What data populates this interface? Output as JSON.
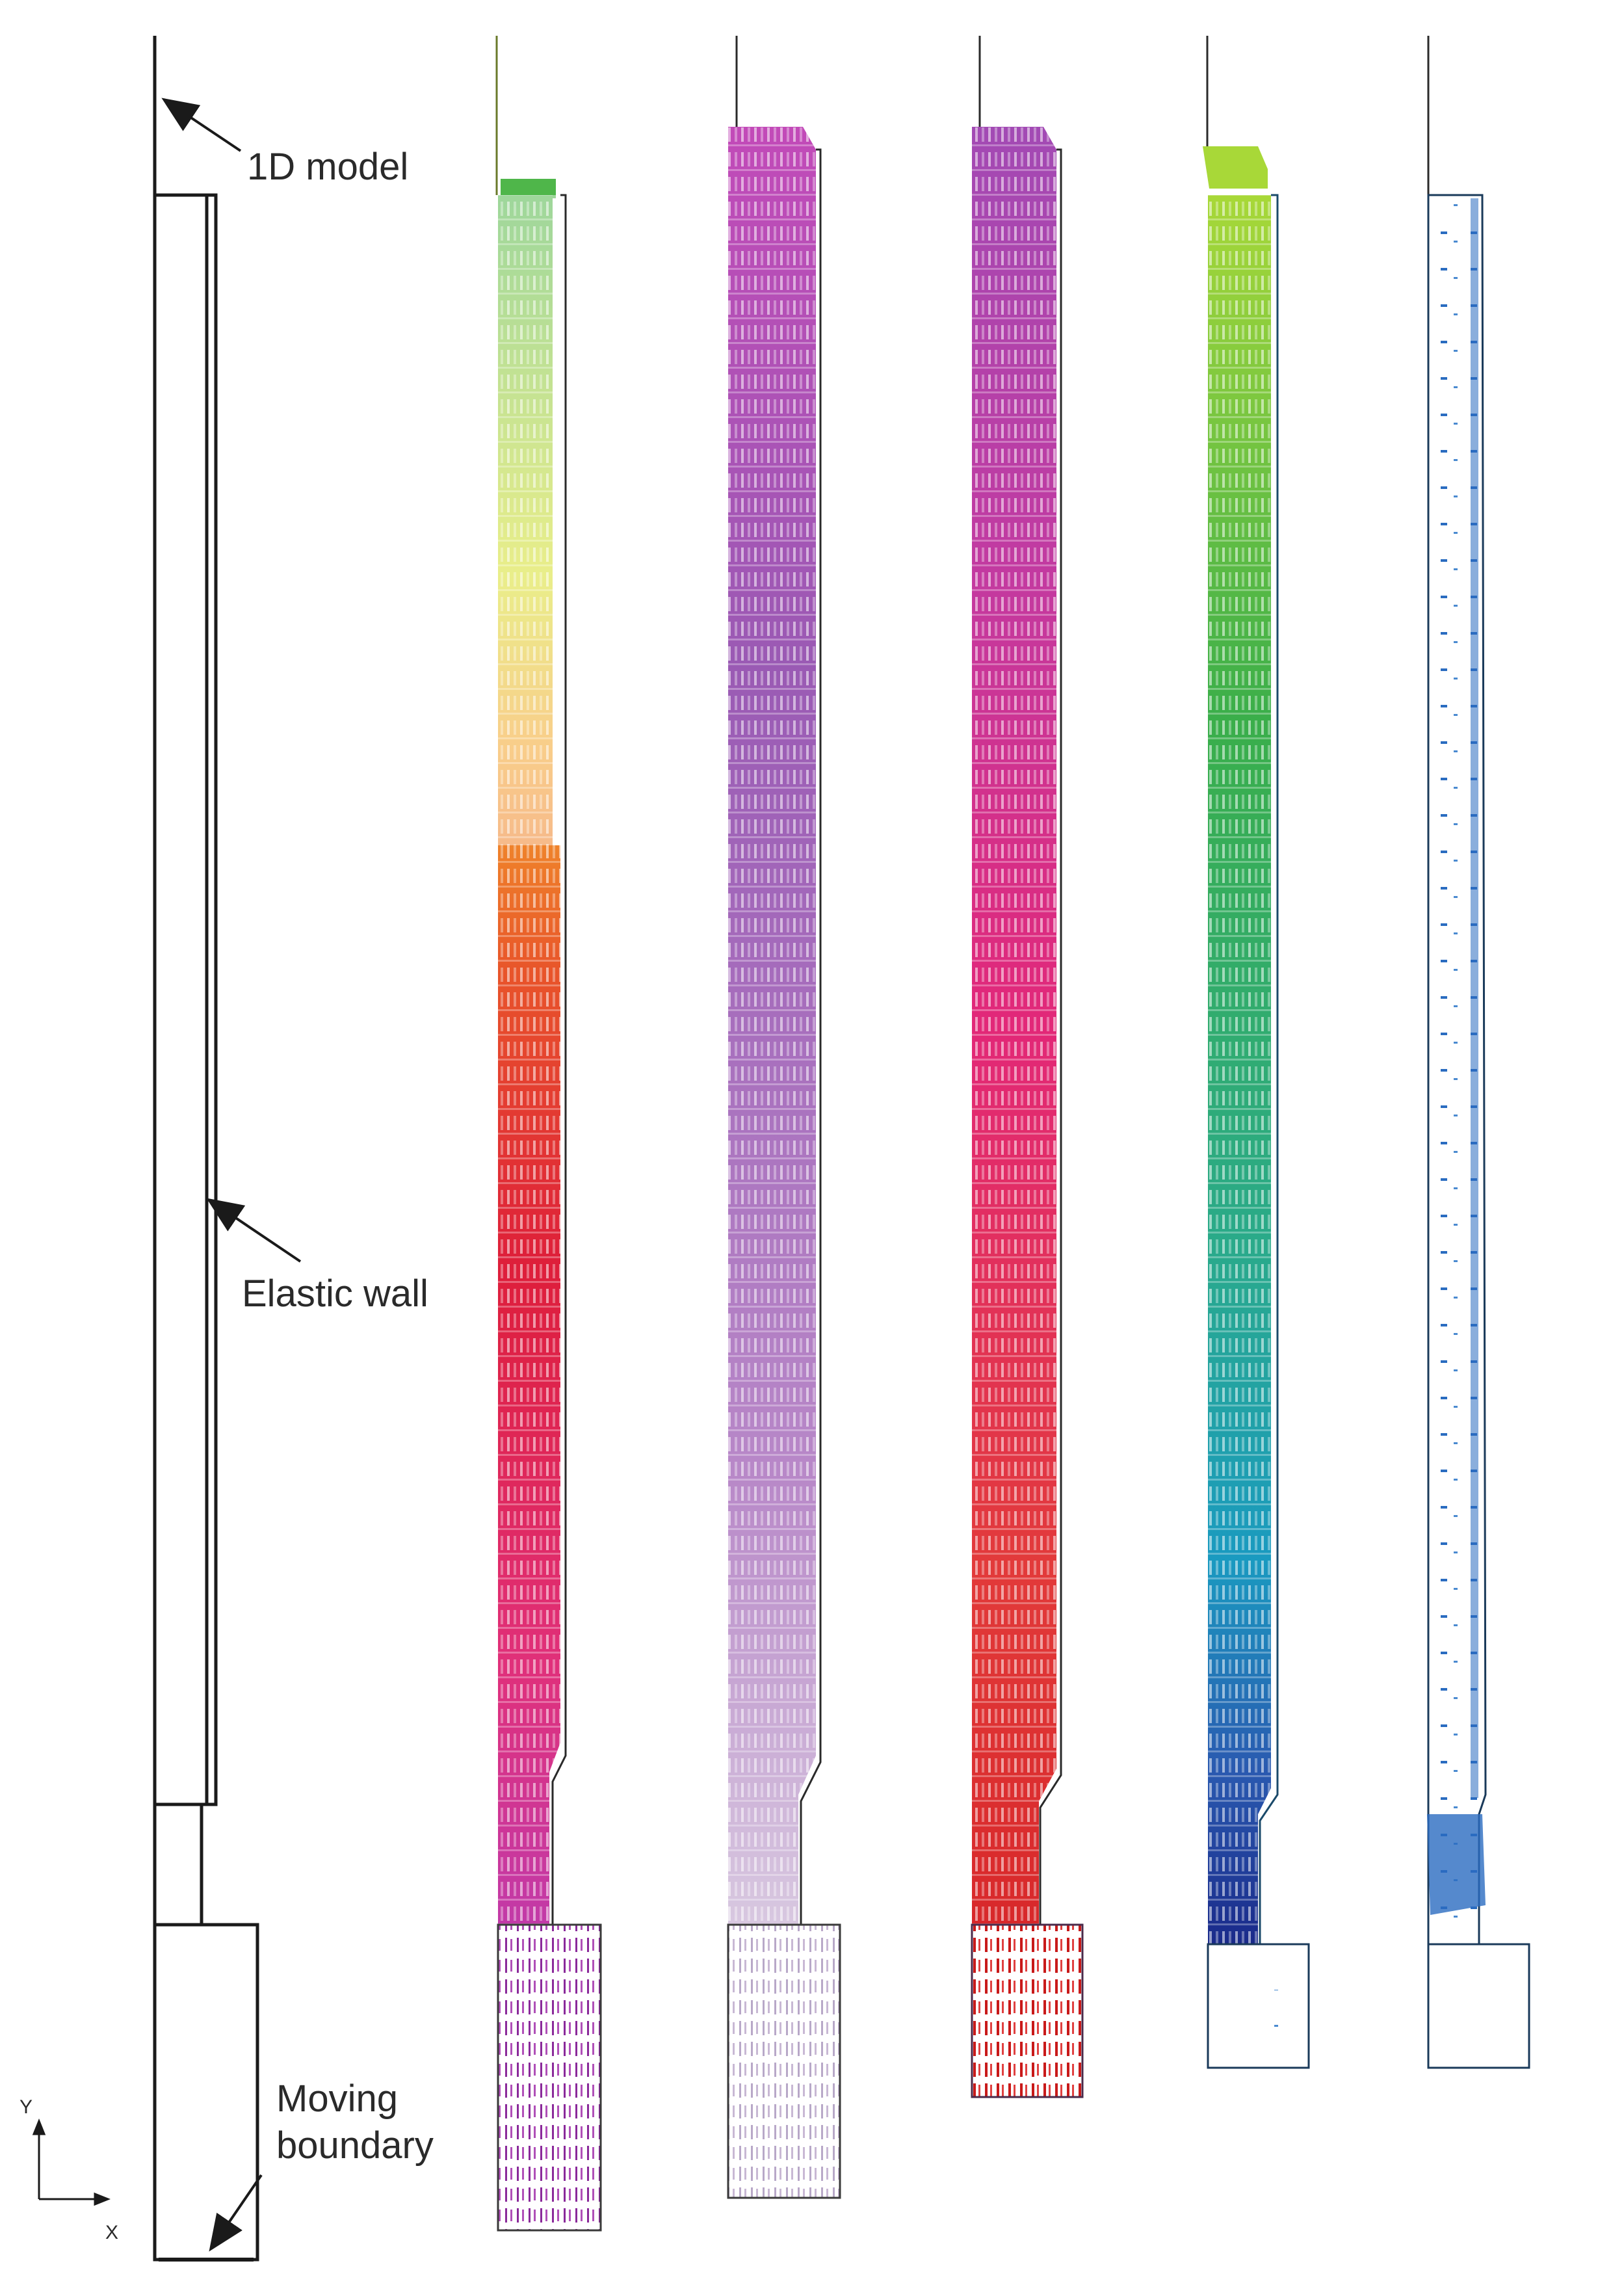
{
  "labels": {
    "model_1d": "1D model",
    "elastic_wall": "Elastic wall",
    "moving_boundary_line1": "Moving",
    "moving_boundary_line2": "boundary",
    "axis_y": "Y",
    "axis_x": "X"
  },
  "colors": {
    "outline": "#1a1a1a",
    "panel_1_gradient": [
      "#4fb64a",
      "#d8e02a",
      "#f4a52a",
      "#e8542a",
      "#de1e3a",
      "#e0307a",
      "#c23aa8"
    ],
    "panel_1_bottom": "#b040b8",
    "panel_2_gradient": [
      "#c24ab8",
      "#9a5ab4",
      "#b888c8",
      "#d8c8e0"
    ],
    "panel_2_bottom": "#d0c8dc",
    "panel_3_gradient": [
      "#a24ab4",
      "#c33aa0",
      "#e22878",
      "#e23a3a",
      "#d8282a"
    ],
    "panel_3_bottom": "#d02a2a",
    "panel_4_gradient": [
      "#a8d838",
      "#3aae4a",
      "#2aaa8a",
      "#1a9ac0",
      "#2a5ab0",
      "#1a2a8a"
    ],
    "panel_4_bottom": "#1a4aa0",
    "panel_5_arrows": "#2a6cc0"
  }
}
